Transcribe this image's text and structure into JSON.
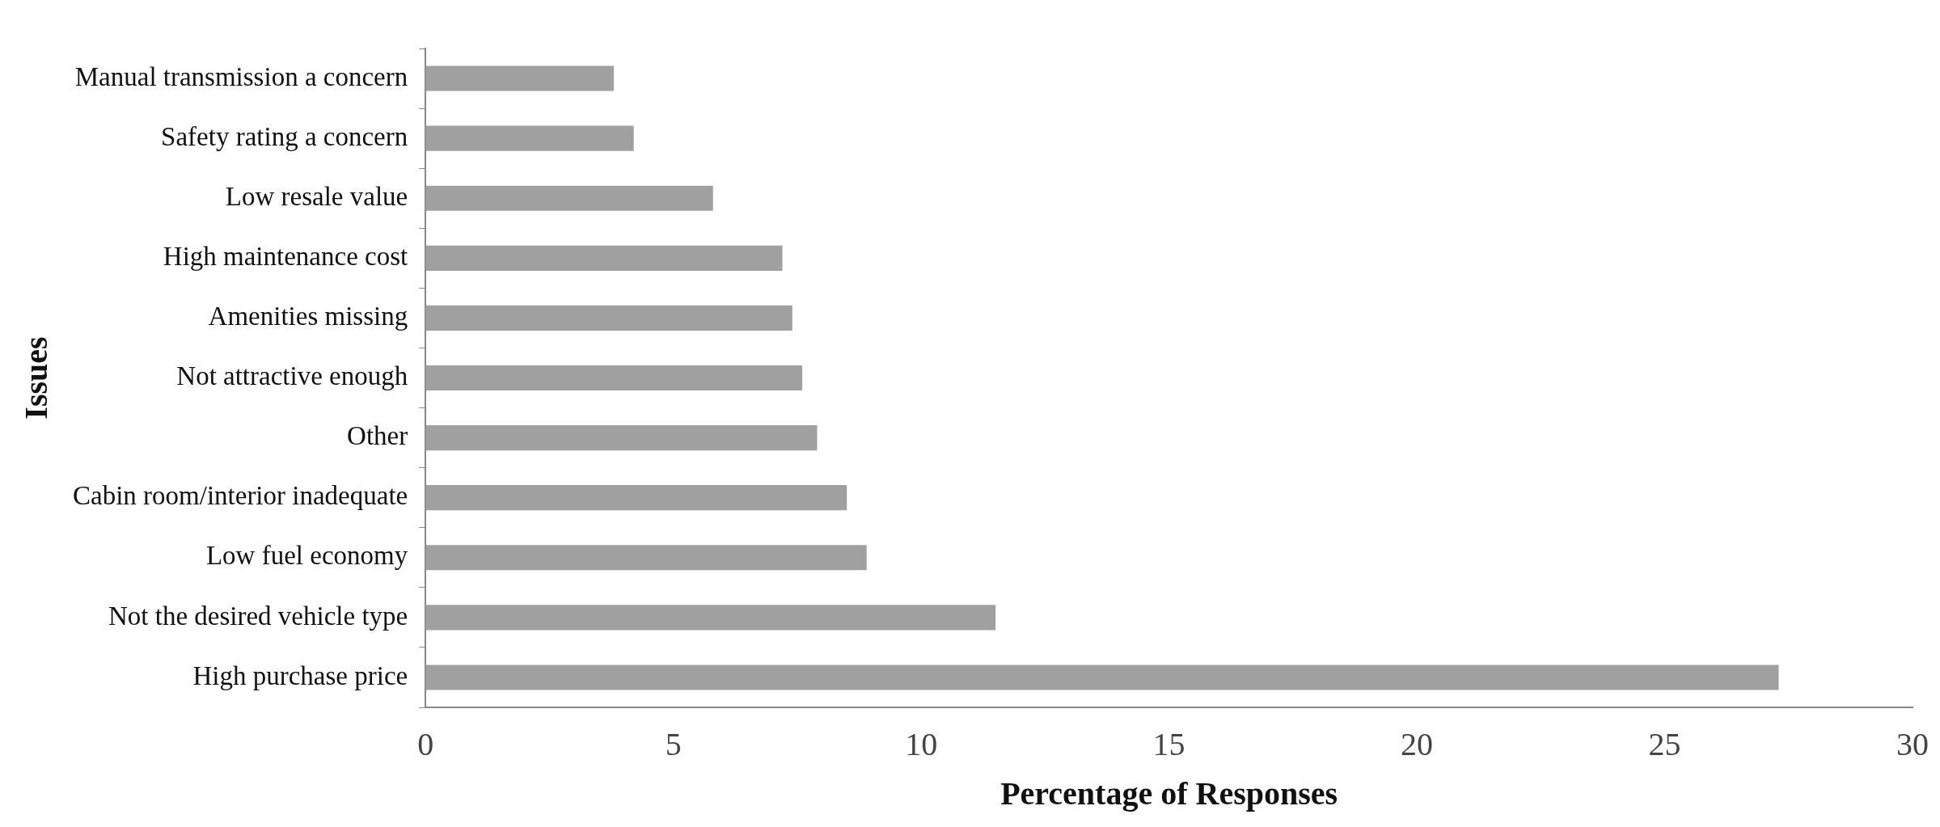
{
  "chart_data": {
    "type": "bar",
    "orientation": "horizontal",
    "xlabel": "Percentage of Responses",
    "ylabel": "Issues",
    "categories": [
      "Manual transmission a concern",
      "Safety rating a concern",
      "Low resale value",
      "High maintenance cost",
      "Amenities missing",
      "Not attractive enough",
      "Other",
      "Cabin room/interior inadequate",
      "Low fuel economy",
      "Not the desired vehicle type",
      "High purchase price"
    ],
    "values": [
      3.8,
      4.2,
      5.8,
      7.2,
      7.4,
      7.6,
      7.9,
      8.5,
      8.9,
      11.5,
      27.3
    ],
    "color": "#a0a0a0",
    "xlim": [
      0,
      30
    ],
    "xticks": [
      0,
      5,
      10,
      15,
      20,
      25,
      30
    ],
    "grid": false,
    "legend": false
  }
}
